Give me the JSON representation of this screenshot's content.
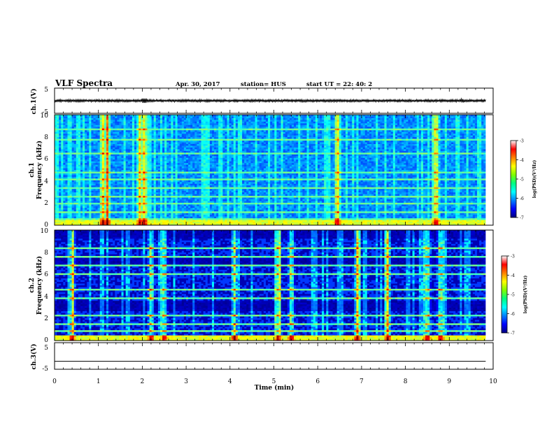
{
  "header": {
    "title": "VLF Spectra",
    "date": "Apr. 30, 2017",
    "station": "station= HUS",
    "start": "start  UT  =    22: 40: 2"
  },
  "colors": {
    "axis": "#000000",
    "trace": "#000000",
    "colormap": [
      "#000080",
      "#0000ff",
      "#0080ff",
      "#00ffff",
      "#00ff80",
      "#80ff00",
      "#ffff00",
      "#ff8000",
      "#ff0000",
      "#ffffff"
    ]
  },
  "colorbar": {
    "label": "log(PSD)(V²/Hz)",
    "ticks": [
      "-3",
      "-4",
      "-5",
      "-6",
      "-7"
    ],
    "values": [
      -3,
      -4,
      -5,
      -6,
      -7
    ]
  },
  "chart_data": [
    {
      "type": "line",
      "panel": "ch1-waveform",
      "ylabel": "ch.1(V)",
      "ylim": [
        -5,
        5
      ],
      "yticks": [
        "5",
        "-5"
      ],
      "x": [
        0,
        1,
        2,
        3,
        4,
        5,
        6,
        7,
        8,
        9,
        9.83
      ],
      "series": [
        {
          "values": [
            0,
            0,
            0,
            0,
            0,
            0,
            0,
            0,
            0,
            0,
            0
          ]
        }
      ],
      "note_visible": "thin noisy trace near 0 V"
    },
    {
      "type": "heatmap",
      "panel": "ch1-spectrogram",
      "ylabel_line1": "ch.1",
      "ylabel_line2": "Frequency (kHz)",
      "ylim": [
        0,
        10
      ],
      "yticks": [
        "0",
        "2",
        "4",
        "6",
        "8",
        "10"
      ],
      "xlim": [
        0,
        10
      ],
      "zlim": [
        -7,
        -3
      ],
      "bands_khz": [
        0.3,
        0.6,
        1.2,
        2.0,
        2.6,
        3.3,
        4.1,
        4.8,
        6.5,
        7.8,
        8.6
      ],
      "bursts_min": [
        1.1,
        1.2,
        1.95,
        2.05,
        6.45,
        8.7
      ]
    },
    {
      "type": "heatmap",
      "panel": "ch2-spectrogram",
      "ylabel_line1": "ch.2",
      "ylabel_line2": "Frequency (kHz)",
      "ylim": [
        0,
        10
      ],
      "yticks": [
        "0",
        "2",
        "4",
        "6",
        "8",
        "10"
      ],
      "xlim": [
        0,
        10
      ],
      "zlim": [
        -7,
        -3
      ],
      "bands_khz": [
        0.8,
        1.5,
        2.2,
        3.8,
        4.6,
        6.0,
        6.8,
        7.6,
        8.4
      ],
      "bursts_min": [
        0.4,
        2.2,
        2.5,
        4.1,
        5.1,
        5.4,
        6.9,
        7.6,
        8.5,
        8.8
      ]
    },
    {
      "type": "line",
      "panel": "ch3-waveform",
      "ylabel": "ch.3(V)",
      "ylim": [
        -5,
        5
      ],
      "yticks": [
        "5",
        "-5"
      ],
      "x": [
        0,
        9.83
      ],
      "series": [
        {
          "values": [
            -2,
            -2
          ]
        }
      ]
    }
  ],
  "xaxis": {
    "label": "Time  (min)",
    "ticks": [
      "0",
      "1",
      "2",
      "3",
      "4",
      "5",
      "6",
      "7",
      "8",
      "9",
      "10"
    ],
    "xlim": [
      0,
      10
    ]
  }
}
